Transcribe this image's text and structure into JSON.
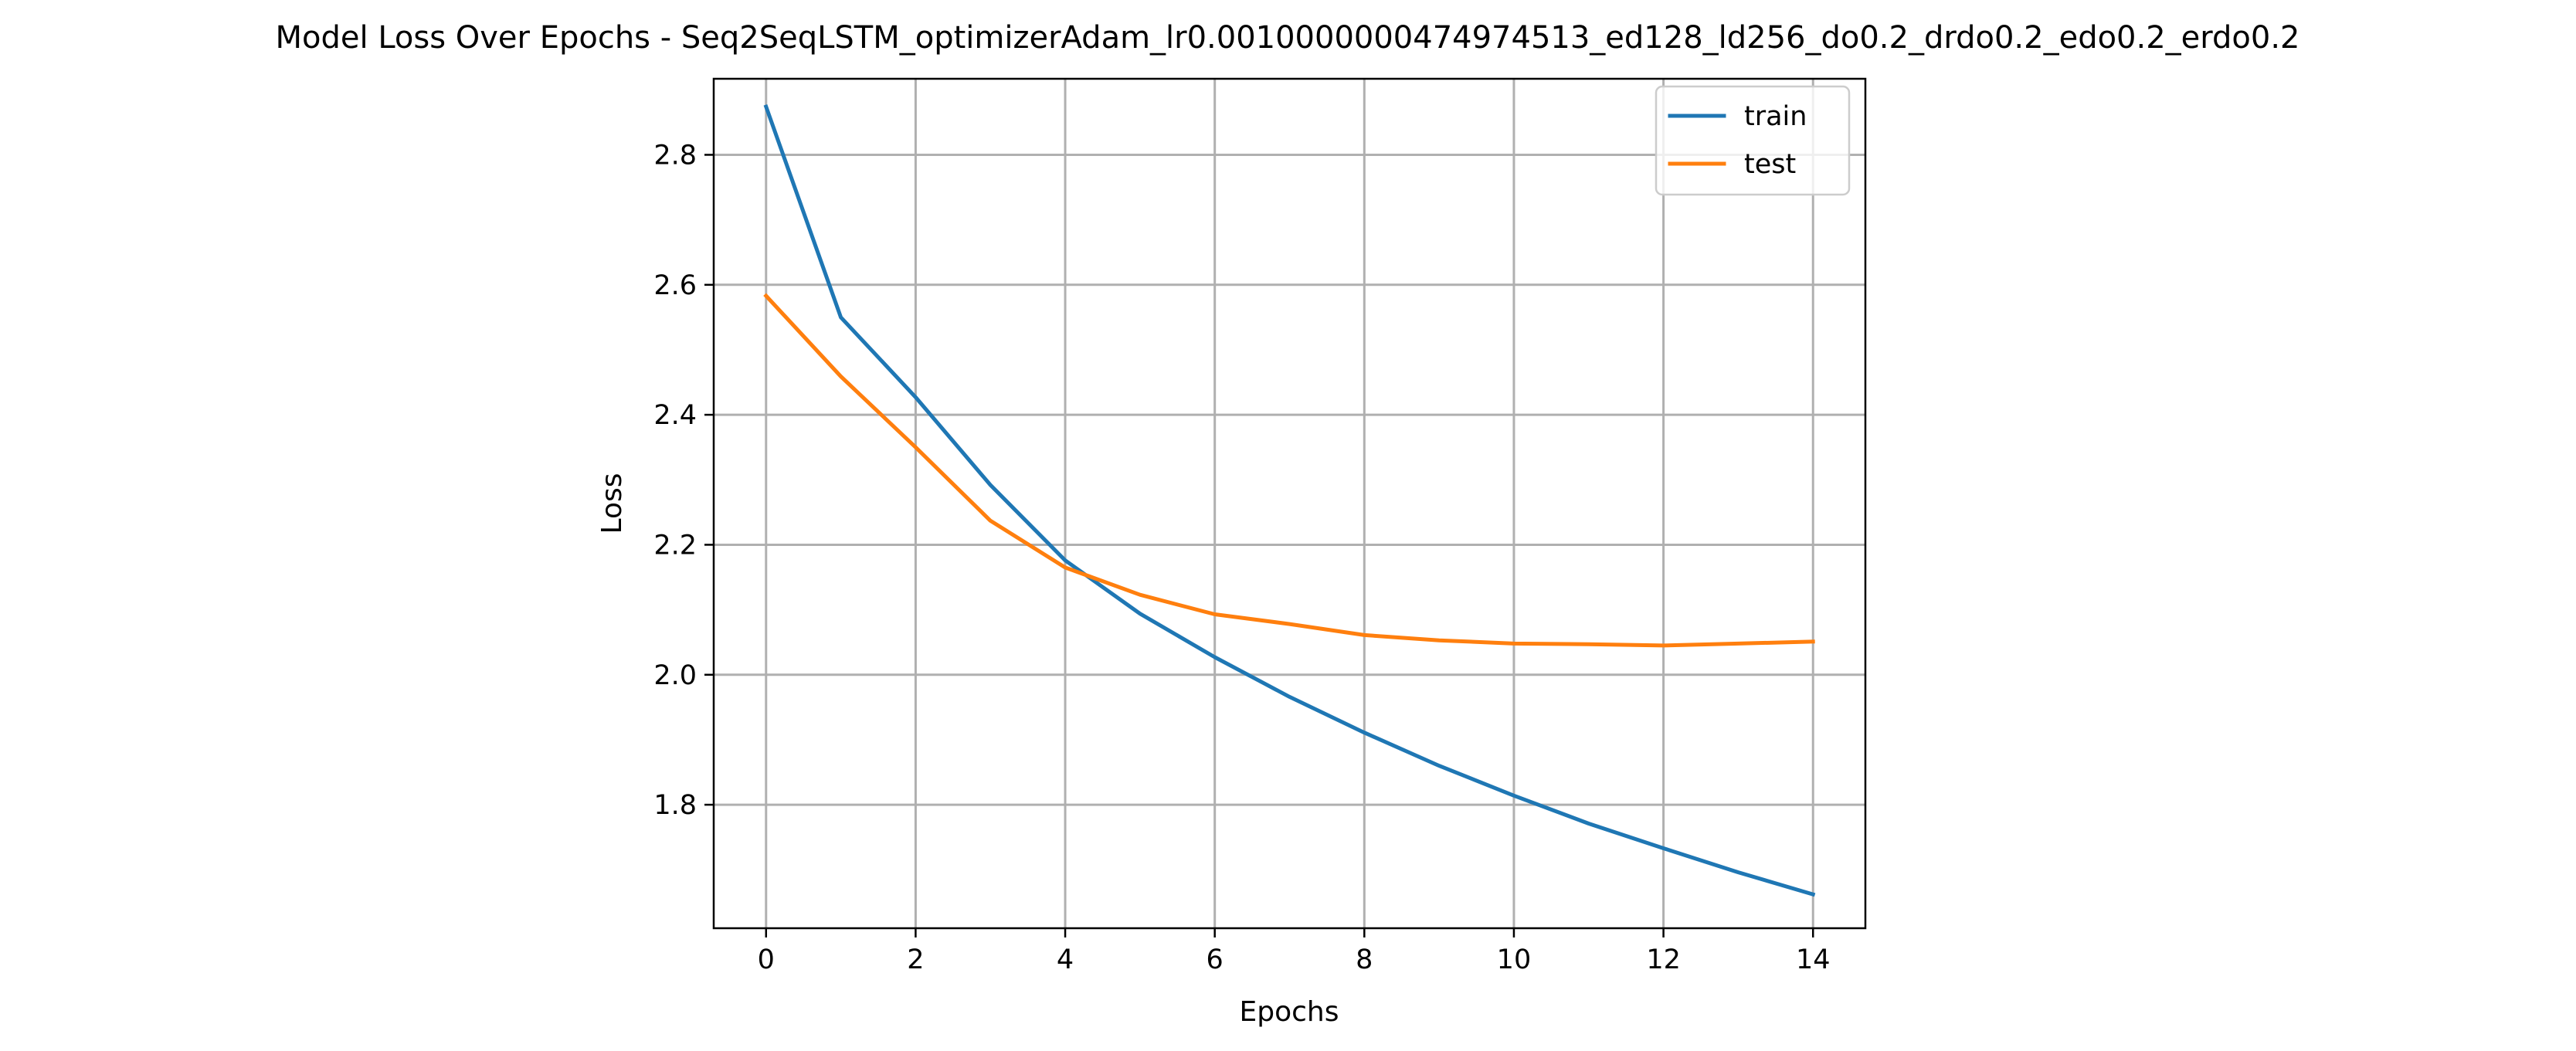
{
  "chart_data": {
    "type": "line",
    "title": "Model Loss Over Epochs - Seq2SeqLSTM_optimizerAdam_lr0.0010000000474974513_ed128_ld256_do0.2_drdo0.2_edo0.2_erdo0.2",
    "xlabel": "Epochs",
    "ylabel": "Loss",
    "x": [
      0,
      1,
      2,
      3,
      4,
      5,
      6,
      7,
      8,
      9,
      10,
      11,
      12,
      13,
      14
    ],
    "xlim": [
      -0.7,
      14.7
    ],
    "ylim": [
      1.61,
      2.917
    ],
    "x_ticks": [
      "0",
      "2",
      "4",
      "6",
      "8",
      "10",
      "12",
      "14"
    ],
    "y_ticks": [
      "1.8",
      "2.0",
      "2.2",
      "2.4",
      "2.6",
      "2.8"
    ],
    "grid": true,
    "legend_position": "upper right",
    "series": [
      {
        "name": "train",
        "color": "#1f77b4",
        "values": [
          2.874,
          2.55,
          2.427,
          2.292,
          2.176,
          2.094,
          2.027,
          1.966,
          1.911,
          1.86,
          1.814,
          1.771,
          1.733,
          1.696,
          1.662
        ]
      },
      {
        "name": "test",
        "color": "#ff7f0e",
        "values": [
          2.583,
          2.459,
          2.35,
          2.237,
          2.165,
          2.123,
          2.093,
          2.078,
          2.061,
          2.053,
          2.048,
          2.047,
          2.045,
          2.048,
          2.051
        ]
      }
    ]
  }
}
